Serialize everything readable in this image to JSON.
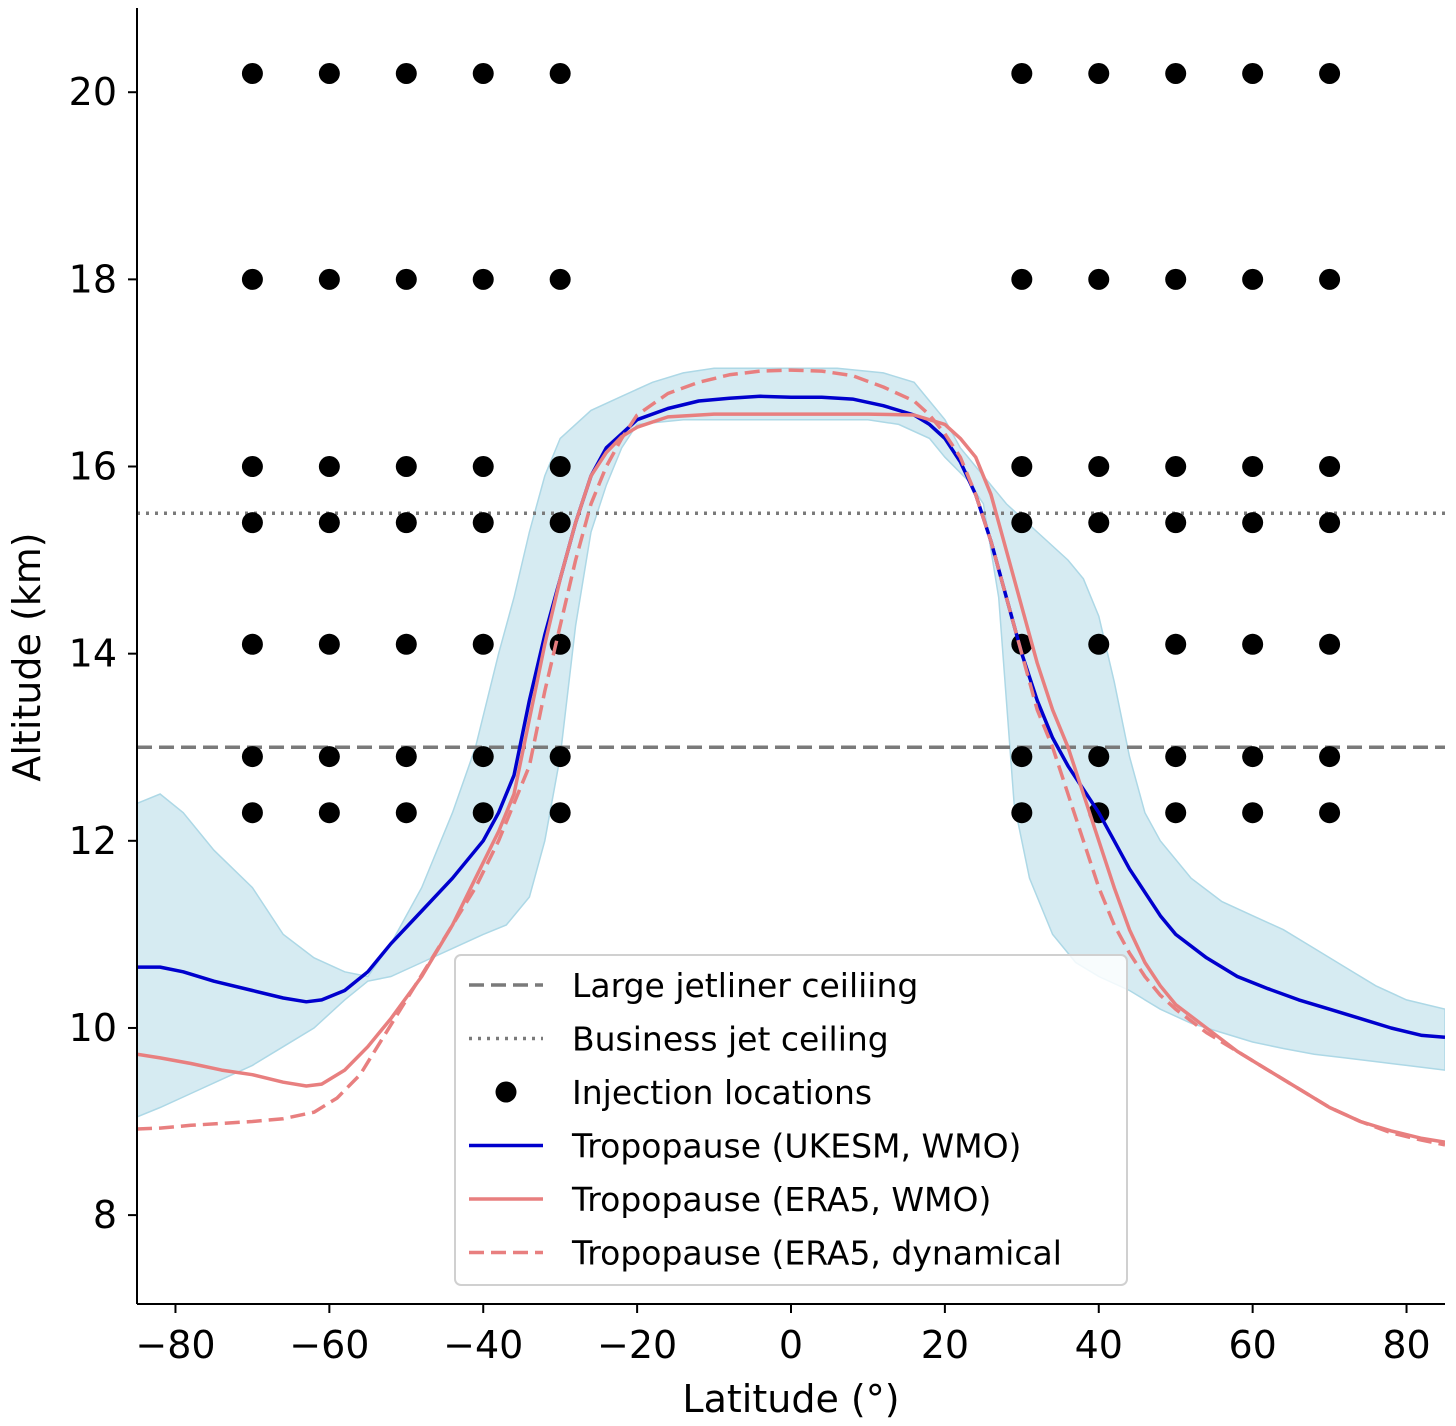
{
  "chart_data": {
    "type": "line",
    "title": "",
    "xlabel": "Latitude (°)",
    "ylabel": "Altitude (km)",
    "xlim": [
      -85,
      85
    ],
    "ylim": [
      7.05,
      20.9
    ],
    "grid": false,
    "legend_position": "bottom-center",
    "xticks": [
      "−80",
      "−60",
      "−40",
      "−20",
      "0",
      "20",
      "40",
      "60",
      "80"
    ],
    "xtick_values": [
      -80,
      -60,
      -40,
      -20,
      0,
      20,
      40,
      60,
      80
    ],
    "yticks": [
      "8",
      "10",
      "12",
      "14",
      "16",
      "18",
      "20"
    ],
    "ytick_values": [
      8,
      10,
      12,
      14,
      16,
      18,
      20
    ],
    "reference_lines": [
      {
        "name": "Large jetliner ceiliing",
        "y": 13.0,
        "style": "dashed",
        "color": "#7a7a7a"
      },
      {
        "name": "Business jet ceiling",
        "y": 15.5,
        "style": "dotted",
        "color": "#7a7a7a"
      }
    ],
    "injection_locations": {
      "name": "Injection locations",
      "color": "#000000",
      "latitudes": [
        -70,
        -60,
        -50,
        -40,
        -30,
        30,
        40,
        50,
        60,
        70
      ],
      "altitudes": [
        12.3,
        12.9,
        14.1,
        15.4,
        16.0,
        18.0,
        20.2
      ]
    },
    "band": {
      "color": "#add8e6",
      "upper": [
        [
          -85,
          12.4
        ],
        [
          -82,
          12.5
        ],
        [
          -79,
          12.3
        ],
        [
          -75,
          11.9
        ],
        [
          -70,
          11.5
        ],
        [
          -66,
          11.0
        ],
        [
          -62,
          10.75
        ],
        [
          -58,
          10.6
        ],
        [
          -55,
          10.55
        ],
        [
          -52,
          10.9
        ],
        [
          -48,
          11.5
        ],
        [
          -44,
          12.3
        ],
        [
          -41,
          13.0
        ],
        [
          -38,
          14.0
        ],
        [
          -36,
          14.6
        ],
        [
          -34,
          15.3
        ],
        [
          -32,
          15.9
        ],
        [
          -30,
          16.3
        ],
        [
          -26,
          16.6
        ],
        [
          -22,
          16.75
        ],
        [
          -18,
          16.9
        ],
        [
          -14,
          17.0
        ],
        [
          -10,
          17.05
        ],
        [
          -6,
          17.05
        ],
        [
          0,
          17.05
        ],
        [
          6,
          17.05
        ],
        [
          12,
          17.0
        ],
        [
          16,
          16.9
        ],
        [
          18,
          16.7
        ],
        [
          20,
          16.5
        ],
        [
          22,
          16.2
        ],
        [
          25,
          15.9
        ],
        [
          28,
          15.6
        ],
        [
          32,
          15.3
        ],
        [
          36,
          15.0
        ],
        [
          38,
          14.8
        ],
        [
          40,
          14.4
        ],
        [
          42,
          13.7
        ],
        [
          44,
          12.9
        ],
        [
          46,
          12.3
        ],
        [
          48,
          12.0
        ],
        [
          52,
          11.6
        ],
        [
          56,
          11.35
        ],
        [
          60,
          11.2
        ],
        [
          64,
          11.05
        ],
        [
          68,
          10.85
        ],
        [
          72,
          10.65
        ],
        [
          76,
          10.45
        ],
        [
          80,
          10.3
        ],
        [
          85,
          10.2
        ]
      ],
      "lower": [
        [
          -85,
          9.05
        ],
        [
          -82,
          9.15
        ],
        [
          -78,
          9.3
        ],
        [
          -74,
          9.45
        ],
        [
          -70,
          9.6
        ],
        [
          -66,
          9.8
        ],
        [
          -62,
          10.0
        ],
        [
          -58,
          10.3
        ],
        [
          -55,
          10.5
        ],
        [
          -52,
          10.55
        ],
        [
          -48,
          10.7
        ],
        [
          -44,
          10.85
        ],
        [
          -40,
          11.0
        ],
        [
          -37,
          11.1
        ],
        [
          -34,
          11.4
        ],
        [
          -32,
          12.0
        ],
        [
          -30,
          12.9
        ],
        [
          -28,
          14.3
        ],
        [
          -26,
          15.3
        ],
        [
          -24,
          15.8
        ],
        [
          -22,
          16.2
        ],
        [
          -20,
          16.45
        ],
        [
          -14,
          16.5
        ],
        [
          -6,
          16.5
        ],
        [
          0,
          16.5
        ],
        [
          10,
          16.5
        ],
        [
          14,
          16.45
        ],
        [
          18,
          16.3
        ],
        [
          20,
          16.1
        ],
        [
          23,
          15.85
        ],
        [
          25,
          15.6
        ],
        [
          27,
          14.6
        ],
        [
          29,
          12.4
        ],
        [
          31,
          11.6
        ],
        [
          34,
          11.0
        ],
        [
          37,
          10.7
        ],
        [
          40,
          10.55
        ],
        [
          44,
          10.4
        ],
        [
          48,
          10.2
        ],
        [
          52,
          10.05
        ],
        [
          56,
          9.95
        ],
        [
          60,
          9.85
        ],
        [
          64,
          9.78
        ],
        [
          68,
          9.72
        ],
        [
          72,
          9.68
        ],
        [
          76,
          9.64
        ],
        [
          80,
          9.6
        ],
        [
          85,
          9.55
        ]
      ]
    },
    "series": [
      {
        "name": "Tropopause (UKESM, WMO)",
        "color": "#0000cd",
        "style": "solid",
        "points": [
          [
            -85,
            10.65
          ],
          [
            -82,
            10.65
          ],
          [
            -79,
            10.6
          ],
          [
            -75,
            10.5
          ],
          [
            -70,
            10.4
          ],
          [
            -66,
            10.32
          ],
          [
            -63,
            10.28
          ],
          [
            -61,
            10.3
          ],
          [
            -58,
            10.4
          ],
          [
            -55,
            10.6
          ],
          [
            -52,
            10.9
          ],
          [
            -48,
            11.25
          ],
          [
            -44,
            11.6
          ],
          [
            -40,
            12.0
          ],
          [
            -38,
            12.3
          ],
          [
            -36,
            12.7
          ],
          [
            -35,
            13.1
          ],
          [
            -34,
            13.5
          ],
          [
            -32,
            14.2
          ],
          [
            -30,
            14.8
          ],
          [
            -28,
            15.4
          ],
          [
            -26,
            15.9
          ],
          [
            -24,
            16.2
          ],
          [
            -22,
            16.35
          ],
          [
            -20,
            16.5
          ],
          [
            -16,
            16.62
          ],
          [
            -12,
            16.7
          ],
          [
            -8,
            16.73
          ],
          [
            -4,
            16.75
          ],
          [
            0,
            16.74
          ],
          [
            4,
            16.74
          ],
          [
            8,
            16.72
          ],
          [
            12,
            16.65
          ],
          [
            16,
            16.55
          ],
          [
            18,
            16.45
          ],
          [
            20,
            16.3
          ],
          [
            22,
            16.05
          ],
          [
            24,
            15.7
          ],
          [
            26,
            15.2
          ],
          [
            28,
            14.6
          ],
          [
            30,
            14.0
          ],
          [
            32,
            13.5
          ],
          [
            34,
            13.1
          ],
          [
            36,
            12.8
          ],
          [
            38,
            12.55
          ],
          [
            40,
            12.3
          ],
          [
            42,
            12.0
          ],
          [
            44,
            11.7
          ],
          [
            46,
            11.45
          ],
          [
            48,
            11.2
          ],
          [
            50,
            11.0
          ],
          [
            54,
            10.75
          ],
          [
            58,
            10.55
          ],
          [
            62,
            10.42
          ],
          [
            66,
            10.3
          ],
          [
            70,
            10.2
          ],
          [
            74,
            10.1
          ],
          [
            78,
            10.0
          ],
          [
            82,
            9.92
          ],
          [
            85,
            9.9
          ]
        ]
      },
      {
        "name": "Tropopause (ERA5, WMO)",
        "color": "#e87f7f",
        "style": "solid",
        "points": [
          [
            -85,
            9.72
          ],
          [
            -82,
            9.68
          ],
          [
            -78,
            9.62
          ],
          [
            -74,
            9.55
          ],
          [
            -70,
            9.5
          ],
          [
            -66,
            9.42
          ],
          [
            -63,
            9.38
          ],
          [
            -61,
            9.4
          ],
          [
            -58,
            9.55
          ],
          [
            -55,
            9.8
          ],
          [
            -52,
            10.1
          ],
          [
            -48,
            10.55
          ],
          [
            -44,
            11.1
          ],
          [
            -41,
            11.6
          ],
          [
            -38,
            12.1
          ],
          [
            -36,
            12.5
          ],
          [
            -35,
            12.9
          ],
          [
            -34,
            13.3
          ],
          [
            -32,
            14.1
          ],
          [
            -30,
            14.8
          ],
          [
            -28,
            15.4
          ],
          [
            -26,
            15.9
          ],
          [
            -24,
            16.15
          ],
          [
            -22,
            16.32
          ],
          [
            -20,
            16.42
          ],
          [
            -16,
            16.53
          ],
          [
            -10,
            16.56
          ],
          [
            0,
            16.56
          ],
          [
            10,
            16.56
          ],
          [
            16,
            16.55
          ],
          [
            20,
            16.45
          ],
          [
            22,
            16.3
          ],
          [
            24,
            16.1
          ],
          [
            26,
            15.7
          ],
          [
            28,
            15.1
          ],
          [
            30,
            14.5
          ],
          [
            32,
            13.9
          ],
          [
            34,
            13.4
          ],
          [
            36,
            13.0
          ],
          [
            38,
            12.5
          ],
          [
            40,
            12.0
          ],
          [
            42,
            11.5
          ],
          [
            44,
            11.05
          ],
          [
            46,
            10.7
          ],
          [
            48,
            10.45
          ],
          [
            50,
            10.25
          ],
          [
            54,
            10.0
          ],
          [
            58,
            9.75
          ],
          [
            62,
            9.55
          ],
          [
            66,
            9.35
          ],
          [
            70,
            9.15
          ],
          [
            74,
            9.0
          ],
          [
            78,
            8.9
          ],
          [
            82,
            8.82
          ],
          [
            85,
            8.78
          ]
        ]
      },
      {
        "name": "Tropopause (ERA5, dynamical",
        "color": "#e87f7f",
        "style": "dashed",
        "points": [
          [
            -85,
            8.92
          ],
          [
            -82,
            8.93
          ],
          [
            -78,
            8.96
          ],
          [
            -74,
            8.98
          ],
          [
            -70,
            9.0
          ],
          [
            -66,
            9.03
          ],
          [
            -62,
            9.1
          ],
          [
            -59,
            9.25
          ],
          [
            -56,
            9.5
          ],
          [
            -53,
            9.9
          ],
          [
            -50,
            10.3
          ],
          [
            -47,
            10.7
          ],
          [
            -44,
            11.1
          ],
          [
            -41,
            11.5
          ],
          [
            -38,
            12.0
          ],
          [
            -36,
            12.4
          ],
          [
            -34,
            12.8
          ],
          [
            -33,
            13.2
          ],
          [
            -32,
            13.6
          ],
          [
            -30,
            14.3
          ],
          [
            -28,
            15.0
          ],
          [
            -26,
            15.6
          ],
          [
            -24,
            16.0
          ],
          [
            -22,
            16.3
          ],
          [
            -20,
            16.55
          ],
          [
            -16,
            16.78
          ],
          [
            -12,
            16.9
          ],
          [
            -8,
            16.98
          ],
          [
            -4,
            17.02
          ],
          [
            0,
            17.03
          ],
          [
            4,
            17.02
          ],
          [
            8,
            16.97
          ],
          [
            12,
            16.85
          ],
          [
            16,
            16.7
          ],
          [
            18,
            16.55
          ],
          [
            20,
            16.35
          ],
          [
            22,
            16.1
          ],
          [
            24,
            15.7
          ],
          [
            26,
            15.2
          ],
          [
            28,
            14.6
          ],
          [
            30,
            14.0
          ],
          [
            32,
            13.4
          ],
          [
            34,
            13.0
          ],
          [
            36,
            12.5
          ],
          [
            38,
            12.0
          ],
          [
            40,
            11.5
          ],
          [
            42,
            11.1
          ],
          [
            44,
            10.8
          ],
          [
            46,
            10.55
          ],
          [
            48,
            10.35
          ],
          [
            50,
            10.2
          ],
          [
            54,
            9.95
          ],
          [
            58,
            9.75
          ],
          [
            62,
            9.55
          ],
          [
            66,
            9.35
          ],
          [
            70,
            9.15
          ],
          [
            74,
            9.0
          ],
          [
            78,
            8.88
          ],
          [
            82,
            8.8
          ],
          [
            85,
            8.75
          ]
        ]
      }
    ],
    "legend": [
      {
        "label": "Large jetliner ceiliing",
        "kind": "line",
        "style": "dashed",
        "color": "#7a7a7a"
      },
      {
        "label": "Business jet ceiling",
        "kind": "line",
        "style": "dotted",
        "color": "#7a7a7a"
      },
      {
        "label": "Injection locations",
        "kind": "marker",
        "color": "#000000"
      },
      {
        "label": "Tropopause (UKESM, WMO)",
        "kind": "line",
        "style": "solid",
        "color": "#0000cd"
      },
      {
        "label": "Tropopause (ERA5, WMO)",
        "kind": "line",
        "style": "solid",
        "color": "#e87f7f"
      },
      {
        "label": "Tropopause (ERA5, dynamical",
        "kind": "line",
        "style": "dashed",
        "color": "#e87f7f"
      }
    ]
  }
}
